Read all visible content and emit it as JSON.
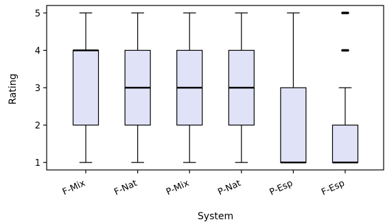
{
  "chart_data": {
    "type": "box",
    "title": "",
    "xlabel": "System",
    "ylabel": "Rating",
    "ylim": [
      0.8,
      5.2
    ],
    "yticks": [
      1,
      2,
      3,
      4,
      5
    ],
    "grid": false,
    "categories": [
      "F-Mix",
      "F-Nat",
      "P-Mix",
      "P-Nat",
      "P-Esp",
      "F-Esp"
    ],
    "boxes": [
      {
        "whisker_low": 1,
        "q1": 2,
        "median": 4,
        "q3": 4,
        "whisker_high": 5,
        "outliers": []
      },
      {
        "whisker_low": 1,
        "q1": 2,
        "median": 3,
        "q3": 4,
        "whisker_high": 5,
        "outliers": []
      },
      {
        "whisker_low": 1,
        "q1": 2,
        "median": 3,
        "q3": 4,
        "whisker_high": 5,
        "outliers": []
      },
      {
        "whisker_low": 1,
        "q1": 2,
        "median": 3,
        "q3": 4,
        "whisker_high": 5,
        "outliers": []
      },
      {
        "whisker_low": 1,
        "q1": 1,
        "median": 1,
        "q3": 3,
        "whisker_high": 5,
        "outliers": []
      },
      {
        "whisker_low": 1,
        "q1": 1,
        "median": 1,
        "q3": 2,
        "whisker_high": 3,
        "outliers": [
          4,
          5
        ]
      }
    ],
    "box_fill": "#e0e2f7",
    "line_color": "#000000"
  }
}
